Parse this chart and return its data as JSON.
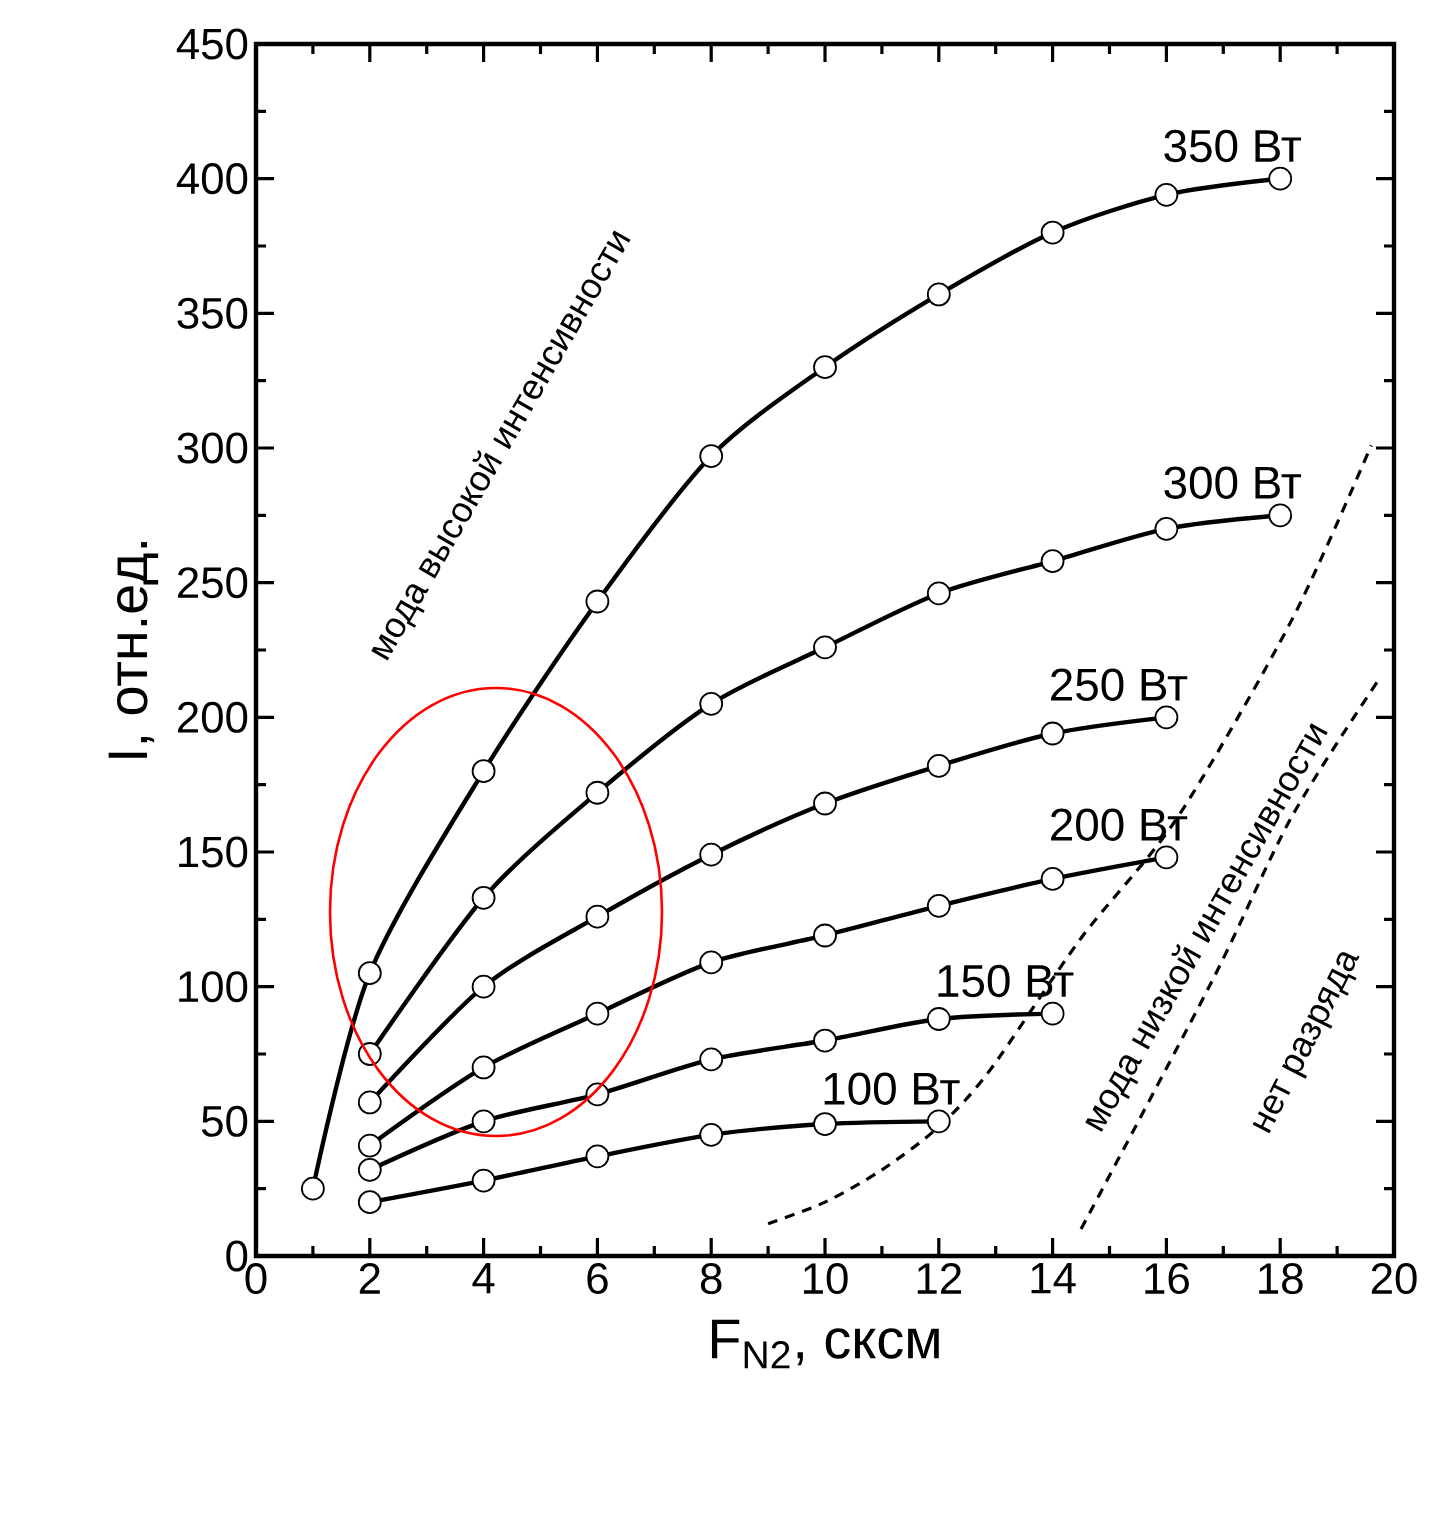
{
  "chart_data": {
    "type": "line",
    "xlabel": "F$_{N2}$, сксм",
    "ylabel": "I, отн.ед.",
    "xlim": [
      0,
      20
    ],
    "ylim": [
      0,
      450
    ],
    "xticks": [
      0,
      2,
      4,
      6,
      8,
      10,
      12,
      14,
      16,
      18,
      20
    ],
    "yticks": [
      0,
      50,
      100,
      150,
      200,
      250,
      300,
      350,
      400,
      450
    ],
    "grid": false,
    "legend": false,
    "marker": "circle",
    "line_style": "solid",
    "series": [
      {
        "name": "350 Вт",
        "color": "#000000",
        "x": [
          1,
          2,
          4,
          6,
          8,
          10,
          12,
          14,
          16,
          18
        ],
        "values": [
          25,
          105,
          180,
          243,
          297,
          330,
          357,
          380,
          394,
          400
        ]
      },
      {
        "name": "300 Вт",
        "color": "#000000",
        "x": [
          2,
          4,
          6,
          8,
          10,
          12,
          14,
          16,
          18
        ],
        "values": [
          75,
          133,
          172,
          205,
          226,
          246,
          258,
          270,
          275
        ]
      },
      {
        "name": "250 Вт",
        "color": "#000000",
        "x": [
          2,
          4,
          6,
          8,
          10,
          12,
          14,
          16
        ],
        "values": [
          57,
          100,
          126,
          149,
          168,
          182,
          194,
          200
        ]
      },
      {
        "name": "200 Вт",
        "color": "#000000",
        "x": [
          2,
          4,
          6,
          8,
          10,
          12,
          14,
          16
        ],
        "values": [
          41,
          70,
          90,
          109,
          119,
          130,
          140,
          148
        ]
      },
      {
        "name": "150 Вт",
        "color": "#000000",
        "x": [
          2,
          4,
          6,
          8,
          10,
          12,
          14
        ],
        "values": [
          32,
          50,
          60,
          73,
          80,
          88,
          90
        ]
      },
      {
        "name": "100 Вт",
        "color": "#000000",
        "x": [
          2,
          4,
          6,
          8,
          10,
          12
        ],
        "values": [
          20,
          28,
          37,
          45,
          49,
          50
        ]
      },
      {
        "color": "#000000",
        "marker": "none",
        "line_style": "dashed",
        "x": [
          9,
          10,
          11,
          12,
          12.9,
          14.5,
          16.2,
          18.2,
          19.6
        ],
        "values": [
          12,
          20,
          32,
          48,
          69,
          118,
          163,
          236,
          301
        ]
      },
      {
        "color": "#000000",
        "marker": "none",
        "line_style": "dashed",
        "x": [
          14.5,
          16.8,
          18.2,
          19.7
        ],
        "values": [
          10,
          102,
          163,
          213
        ]
      }
    ],
    "annotations": [
      "мода высокой интенсивности",
      "мода низкой интенсивности",
      "нет разряда"
    ]
  }
}
